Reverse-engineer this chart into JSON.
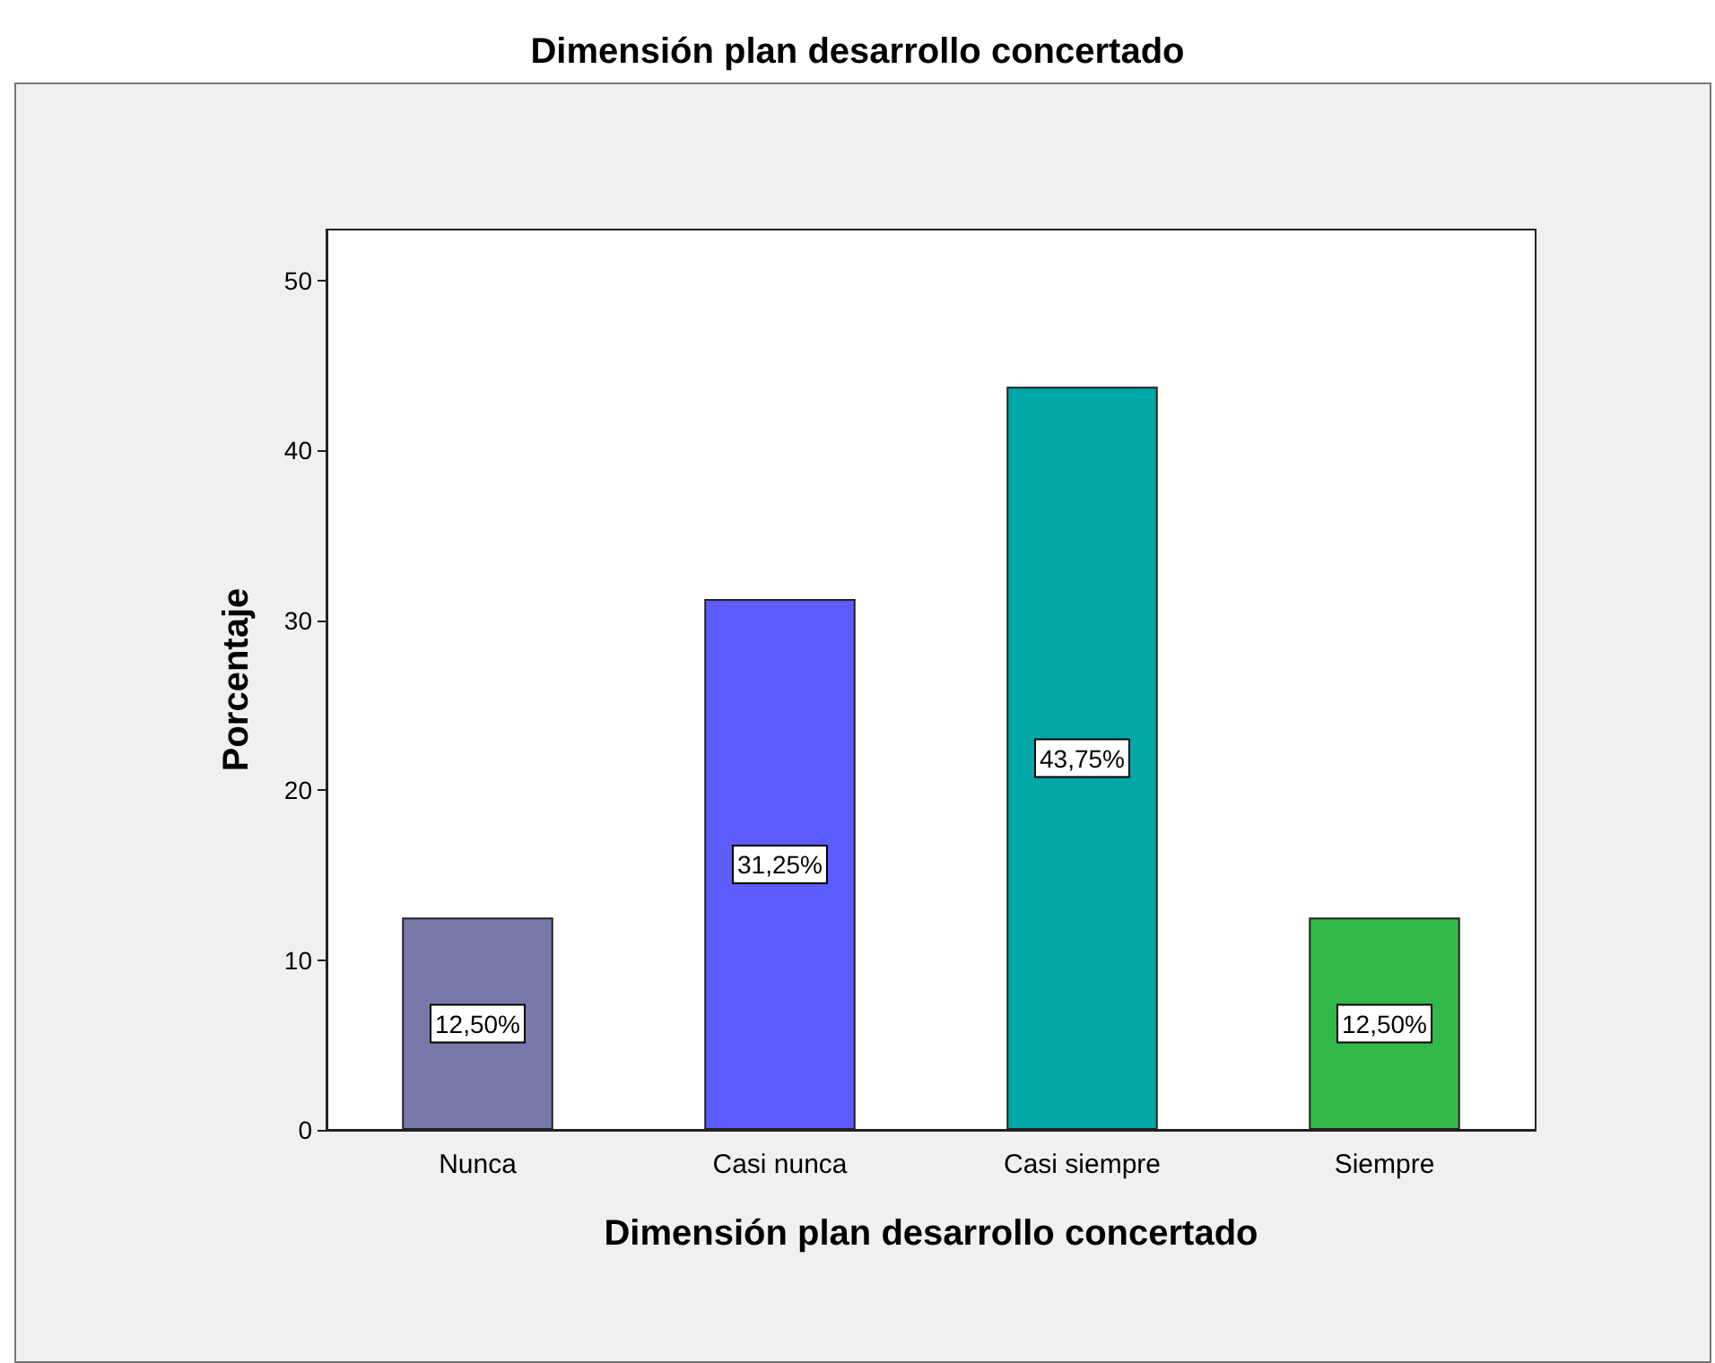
{
  "chart_data": {
    "type": "bar",
    "title": "Dimensión plan desarrollo concertado",
    "xlabel": "Dimensión plan desarrollo concertado",
    "ylabel": "Porcentaje",
    "categories": [
      "Nunca",
      "Casi nunca",
      "Casi siempre",
      "Siempre"
    ],
    "values": [
      12.5,
      31.25,
      43.75,
      12.5
    ],
    "colors": [
      "#7878a8",
      "#5c5cff",
      "#00a8a8",
      "#33b84a"
    ],
    "value_labels": [
      "12,50%",
      "31,25%",
      "43,75%",
      "12,50%"
    ],
    "ylim": [
      0,
      53
    ],
    "yticks": [
      0,
      10,
      20,
      30,
      40,
      50
    ],
    "grid": false
  }
}
